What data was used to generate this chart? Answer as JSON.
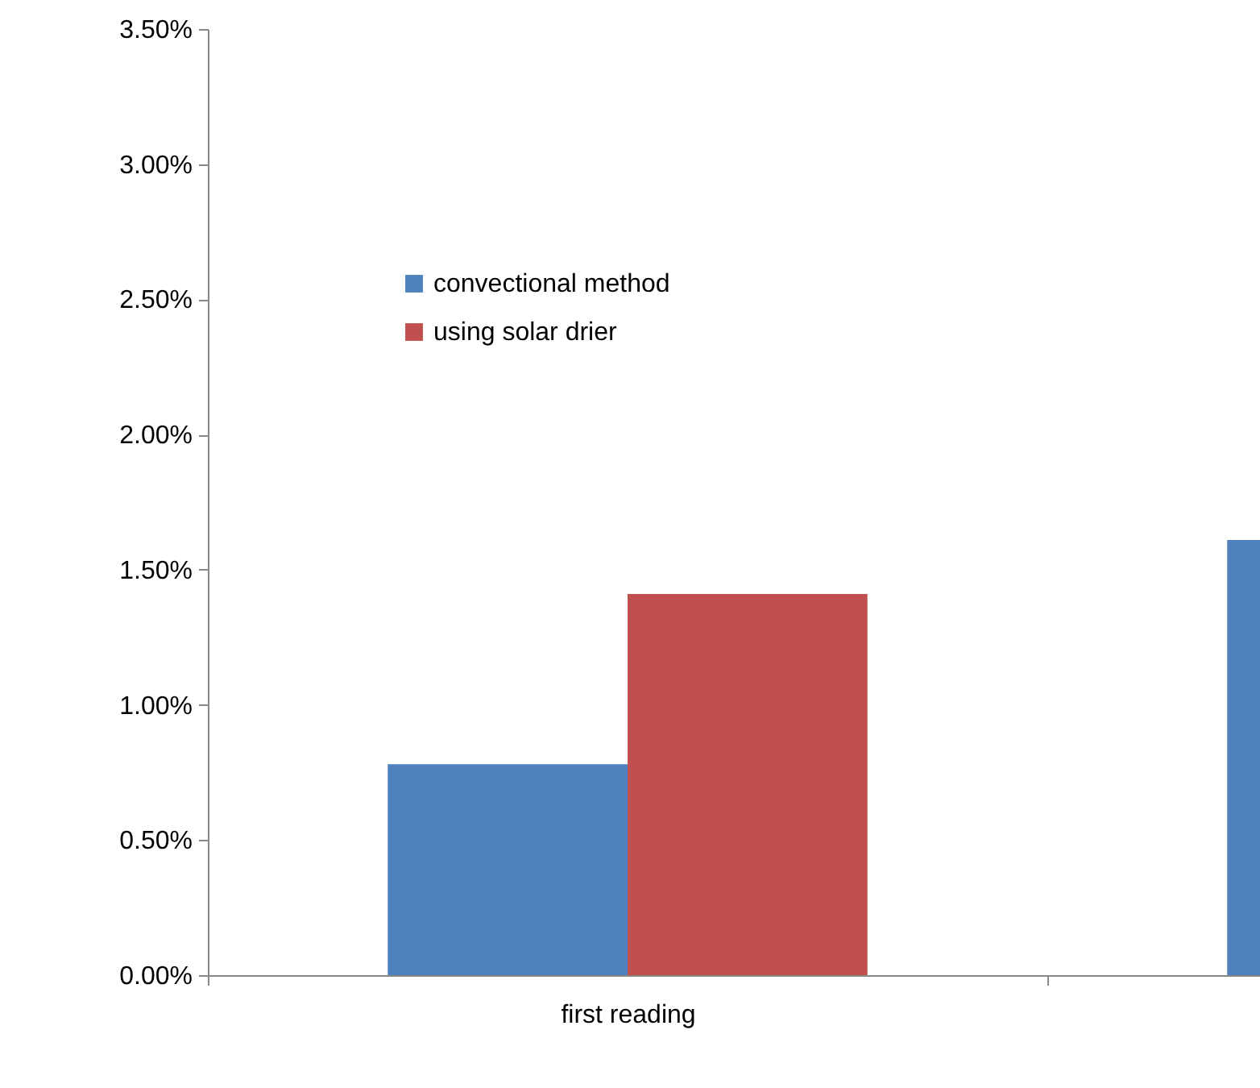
{
  "chart_data": {
    "type": "bar",
    "categories": [
      "first reading",
      null
    ],
    "series": [
      {
        "name": "convectional method",
        "color": "#4f81bd",
        "values": [
          0.78,
          1.61
        ]
      },
      {
        "name": "using solar drier",
        "color": "#c0504d",
        "values": [
          1.41,
          null
        ]
      }
    ],
    "ylim": [
      0,
      3.5
    ],
    "yticks": [
      {
        "value": 0,
        "label": "0.00%"
      },
      {
        "value": 0.5,
        "label": "0.50%"
      },
      {
        "value": 1,
        "label": "1.00%"
      },
      {
        "value": 1.5,
        "label": "1.50%"
      },
      {
        "value": 2,
        "label": "2.00%"
      },
      {
        "value": 2.5,
        "label": "2.50%"
      },
      {
        "value": 3,
        "label": "3.00%"
      },
      {
        "value": 3.5,
        "label": "3.50%"
      }
    ],
    "grid": false,
    "legend": "top left"
  }
}
